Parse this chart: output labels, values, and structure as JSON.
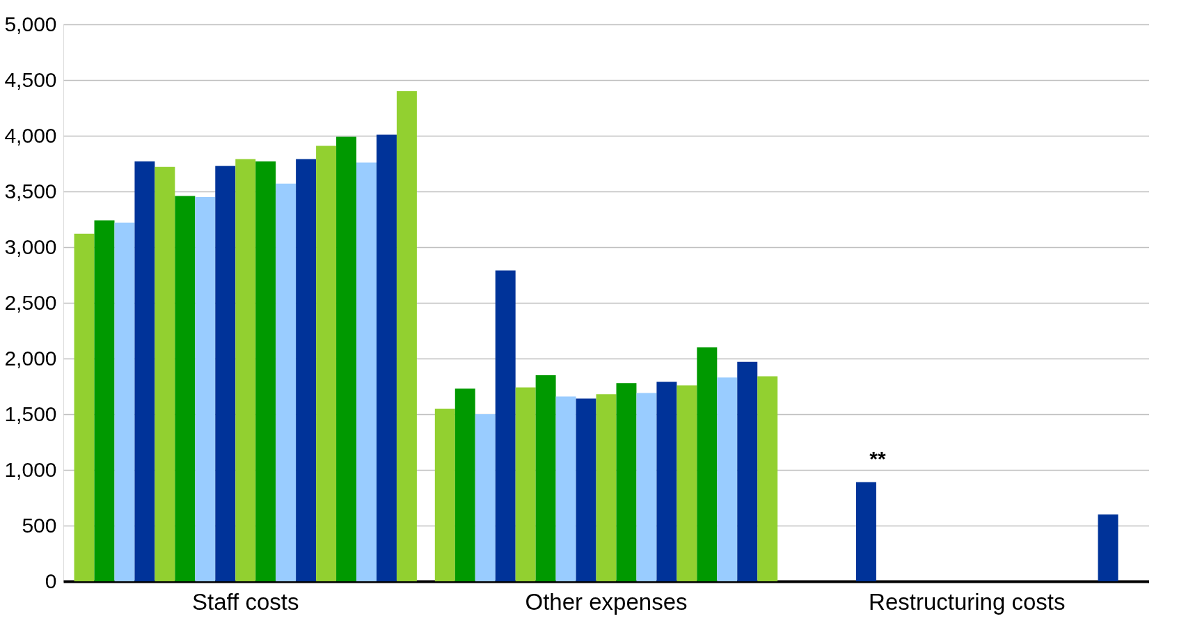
{
  "chart_data": {
    "type": "bar",
    "categories": [
      "Staff costs",
      "Other expenses",
      "Restructuring costs"
    ],
    "series": [
      {
        "color": "#92d030",
        "values": [
          3120,
          1550,
          null
        ]
      },
      {
        "color": "#009900",
        "values": [
          3240,
          1730,
          null
        ]
      },
      {
        "color": "#99ccff",
        "values": [
          3220,
          1500,
          null
        ]
      },
      {
        "color": "#003399",
        "values": [
          3770,
          2790,
          890
        ]
      },
      {
        "color": "#92d030",
        "values": [
          3720,
          1740,
          null
        ]
      },
      {
        "color": "#009900",
        "values": [
          3460,
          1850,
          null
        ]
      },
      {
        "color": "#99ccff",
        "values": [
          3450,
          1660,
          null
        ]
      },
      {
        "color": "#003399",
        "values": [
          3730,
          1640,
          null
        ]
      },
      {
        "color": "#92d030",
        "values": [
          3790,
          1680,
          null
        ]
      },
      {
        "color": "#009900",
        "values": [
          3770,
          1780,
          null
        ]
      },
      {
        "color": "#99ccff",
        "values": [
          3570,
          1690,
          null
        ]
      },
      {
        "color": "#003399",
        "values": [
          3790,
          1790,
          null
        ]
      },
      {
        "color": "#92d030",
        "values": [
          3910,
          1760,
          null
        ]
      },
      {
        "color": "#009900",
        "values": [
          3990,
          2100,
          null
        ]
      },
      {
        "color": "#99ccff",
        "values": [
          3760,
          1830,
          null
        ]
      },
      {
        "color": "#003399",
        "values": [
          4010,
          1970,
          600
        ]
      },
      {
        "color": "#92d030",
        "values": [
          4400,
          1840,
          null
        ]
      }
    ],
    "ylim": [
      0,
      5000
    ],
    "yticks": [
      0,
      500,
      {
        "value": 1000,
        "label": "1,000"
      },
      {
        "value": 1500,
        "label": "1,500"
      },
      {
        "value": 2000,
        "label": "2,000"
      },
      {
        "value": 2500,
        "label": "2,500"
      },
      {
        "value": 3000,
        "label": "3,000"
      },
      {
        "value": 3500,
        "label": "3,500"
      },
      {
        "value": 4000,
        "label": "4,000"
      },
      {
        "value": 4500,
        "label": "4,500"
      },
      {
        "value": 5000,
        "label": "5,000"
      }
    ],
    "grid": "y",
    "legend": false,
    "annotations": [
      "**"
    ]
  }
}
